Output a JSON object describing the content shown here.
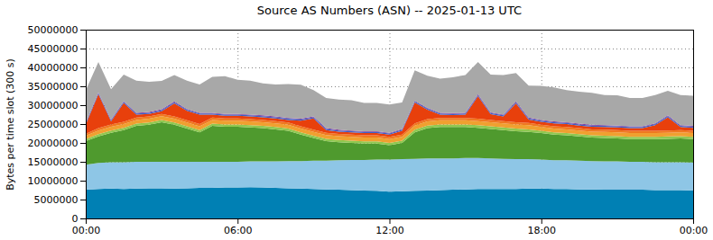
{
  "chart_data": {
    "type": "area",
    "stacked": true,
    "grid": true,
    "title": "Source AS Numbers (ASN) -- 2025-01-13 UTC",
    "y_label": "Bytes per time slot (300 s)",
    "x": [
      0,
      0.5,
      1,
      1.5,
      2,
      2.5,
      3,
      3.5,
      4,
      4.5,
      5,
      5.5,
      6,
      6.5,
      7,
      7.5,
      8,
      8.5,
      9,
      9.5,
      10,
      10.5,
      11,
      11.5,
      12,
      12.5,
      13,
      13.5,
      14,
      14.5,
      15,
      15.5,
      16,
      16.5,
      17,
      17.5,
      18,
      18.5,
      19,
      19.5,
      20,
      20.5,
      21,
      21.5,
      22,
      22.5,
      23,
      23.5,
      24
    ],
    "xlim": [
      0,
      24
    ],
    "xticks": [
      {
        "value": 0,
        "label": "00:00"
      },
      {
        "value": 6,
        "label": "06:00"
      },
      {
        "value": 12,
        "label": "12:00"
      },
      {
        "value": 18,
        "label": "18:00"
      },
      {
        "value": 24,
        "label": "00:00"
      }
    ],
    "ylim": [
      0,
      50000000
    ],
    "yticks": [
      0,
      5000000,
      10000000,
      15000000,
      20000000,
      25000000,
      30000000,
      35000000,
      40000000,
      45000000,
      50000000
    ],
    "series": [
      {
        "color": "#0080b4",
        "values": [
          7600000,
          7800000,
          7900000,
          7800000,
          7900000,
          8000000,
          8000000,
          7900000,
          8000000,
          8100000,
          8100000,
          8200000,
          8200000,
          8300000,
          8200000,
          8100000,
          8000000,
          7900000,
          7800000,
          7700000,
          7600000,
          7500000,
          7400000,
          7300000,
          7100000,
          7200000,
          7300000,
          7400000,
          7500000,
          7600000,
          7700000,
          7800000,
          7800000,
          7800000,
          7800000,
          7900000,
          7900000,
          7800000,
          7800000,
          7700000,
          7700000,
          7600000,
          7600000,
          7600000,
          7600000,
          7500000,
          7500000,
          7500000,
          7400000
        ]
      },
      {
        "color": "#8ec6e6",
        "values": [
          6600000,
          6900000,
          7000000,
          7100000,
          7100000,
          7000000,
          7000000,
          7100000,
          7000000,
          6900000,
          6900000,
          6800000,
          6800000,
          6800000,
          6900000,
          7000000,
          7200000,
          7300000,
          7500000,
          7600000,
          7800000,
          8000000,
          8100000,
          8300000,
          8500000,
          8500000,
          8500000,
          8500000,
          8400000,
          8300000,
          8300000,
          8200000,
          8100000,
          8000000,
          7900000,
          7800000,
          7700000,
          7600000,
          7600000,
          7600000,
          7500000,
          7500000,
          7500000,
          7400000,
          7400000,
          7400000,
          7400000,
          7400000,
          7400000
        ]
      },
      {
        "color": "#4f9a2e",
        "values": [
          6300000,
          7000000,
          7800000,
          8500000,
          9500000,
          9800000,
          10500000,
          9800000,
          8800000,
          7800000,
          9500000,
          9300000,
          9300000,
          9000000,
          8800000,
          8500000,
          8000000,
          7000000,
          6000000,
          5200000,
          4800000,
          4500000,
          4300000,
          4200000,
          3800000,
          4300000,
          7000000,
          8000000,
          8300000,
          8300000,
          8200000,
          8000000,
          7800000,
          7600000,
          7400000,
          7200000,
          7000000,
          6800000,
          6600000,
          6400000,
          6200000,
          6200000,
          6100000,
          6000000,
          6000000,
          6100000,
          6200000,
          6300000,
          6200000
        ]
      },
      {
        "color": "#90c850",
        "values": [
          500000,
          600000,
          600000,
          600000,
          600000,
          600000,
          600000,
          600000,
          600000,
          600000,
          600000,
          600000,
          600000,
          600000,
          600000,
          600000,
          600000,
          600000,
          600000,
          600000,
          600000,
          600000,
          600000,
          600000,
          600000,
          600000,
          700000,
          700000,
          700000,
          700000,
          700000,
          700000,
          700000,
          700000,
          700000,
          700000,
          600000,
          600000,
          600000,
          600000,
          600000,
          600000,
          600000,
          600000,
          600000,
          600000,
          600000,
          600000,
          600000
        ]
      },
      {
        "color": "#f0a030",
        "values": [
          900000,
          1000000,
          1000000,
          1000000,
          1000000,
          1000000,
          1000000,
          1000000,
          1000000,
          1000000,
          1000000,
          1000000,
          1000000,
          1000000,
          1000000,
          1000000,
          1000000,
          1000000,
          1000000,
          1000000,
          1000000,
          1000000,
          1000000,
          1000000,
          1000000,
          1000000,
          1100000,
          1100000,
          1100000,
          1100000,
          1100000,
          1100000,
          1100000,
          1100000,
          1100000,
          1100000,
          1000000,
          1000000,
          1000000,
          1000000,
          1000000,
          1000000,
          1000000,
          1000000,
          1000000,
          1000000,
          1000000,
          1000000,
          1000000
        ]
      },
      {
        "color": "#f07820",
        "values": [
          500000,
          600000,
          600000,
          600000,
          600000,
          600000,
          600000,
          600000,
          600000,
          600000,
          600000,
          600000,
          600000,
          600000,
          600000,
          600000,
          600000,
          600000,
          600000,
          600000,
          600000,
          600000,
          600000,
          600000,
          600000,
          600000,
          600000,
          600000,
          600000,
          600000,
          600000,
          600000,
          600000,
          600000,
          600000,
          600000,
          600000,
          600000,
          600000,
          600000,
          600000,
          600000,
          600000,
          600000,
          600000,
          600000,
          600000,
          600000,
          600000
        ]
      },
      {
        "color": "#e8400c",
        "values": [
          2500000,
          9000000,
          800000,
          5000000,
          800000,
          700000,
          700000,
          3500000,
          2500000,
          2500000,
          800000,
          700000,
          700000,
          700000,
          700000,
          700000,
          700000,
          1500000,
          3000000,
          700000,
          600000,
          600000,
          600000,
          600000,
          600000,
          1000000,
          5500000,
          2500000,
          900000,
          800000,
          900000,
          6000000,
          1500000,
          1200000,
          5000000,
          900000,
          800000,
          800000,
          800000,
          700000,
          700000,
          700000,
          700000,
          700000,
          700000,
          1500000,
          3500000,
          800000,
          800000
        ]
      },
      {
        "color": "#3a62c8",
        "values": [
          300000,
          300000,
          300000,
          300000,
          300000,
          300000,
          300000,
          300000,
          300000,
          300000,
          300000,
          300000,
          300000,
          300000,
          300000,
          300000,
          300000,
          300000,
          300000,
          300000,
          300000,
          300000,
          300000,
          300000,
          300000,
          300000,
          300000,
          300000,
          300000,
          300000,
          300000,
          300000,
          300000,
          300000,
          300000,
          300000,
          300000,
          300000,
          300000,
          300000,
          300000,
          300000,
          300000,
          300000,
          300000,
          300000,
          300000,
          300000,
          300000
        ]
      },
      {
        "color": "#8040a0",
        "values": [
          200000,
          200000,
          200000,
          200000,
          200000,
          200000,
          200000,
          200000,
          200000,
          200000,
          200000,
          200000,
          200000,
          200000,
          200000,
          200000,
          200000,
          200000,
          200000,
          200000,
          200000,
          200000,
          200000,
          200000,
          200000,
          200000,
          200000,
          200000,
          200000,
          200000,
          200000,
          200000,
          200000,
          200000,
          200000,
          200000,
          200000,
          200000,
          200000,
          200000,
          200000,
          200000,
          200000,
          200000,
          200000,
          200000,
          200000,
          200000,
          200000
        ]
      },
      {
        "color": "#a8a8a8",
        "values": [
          8500000,
          8000000,
          8000000,
          7000000,
          8500000,
          8000000,
          7500000,
          7000000,
          7500000,
          7500000,
          9500000,
          10000000,
          9000000,
          9000000,
          8500000,
          8500000,
          9000000,
          9000000,
          7000000,
          8000000,
          8000000,
          8000000,
          7500000,
          7500000,
          7500000,
          7000000,
          8000000,
          8500000,
          9000000,
          9500000,
          10000000,
          8500000,
          10000000,
          10500000,
          7500000,
          8500000,
          9000000,
          9000000,
          8500000,
          8500000,
          8500000,
          8000000,
          8000000,
          7500000,
          7500000,
          7500000,
          6500000,
          8000000,
          8000000
        ]
      }
    ]
  }
}
